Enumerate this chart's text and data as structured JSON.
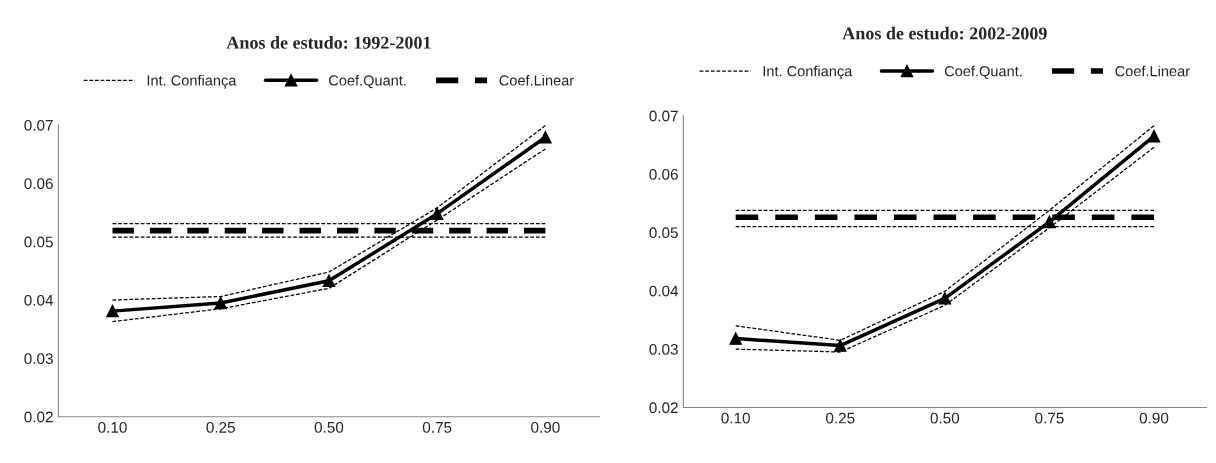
{
  "chart_data": [
    {
      "type": "line",
      "title": "Anos de estudo: 1992-2001",
      "categories": [
        "0.10",
        "0.25",
        "0.50",
        "0.75",
        "0.90"
      ],
      "ylim": [
        0.02,
        0.07
      ],
      "yticks": [
        0.02,
        0.03,
        0.04,
        0.05,
        0.06,
        0.07
      ],
      "grid": false,
      "legend": "top",
      "series": [
        {
          "name": "Int. Confiança",
          "color": "#000000",
          "line_style": "dotted",
          "marker": "none",
          "values": [
            0.04,
            0.0406,
            0.0448,
            0.0558,
            0.0699
          ]
        },
        {
          "color": "#000000",
          "line_style": "dotted",
          "marker": "none",
          "values": [
            0.0363,
            0.0385,
            0.042,
            0.0537,
            0.0659
          ]
        },
        {
          "name": "Coef.Quant.",
          "color": "#000000",
          "line_style": "solid",
          "marker": "triangle",
          "values": [
            0.0381,
            0.0395,
            0.0433,
            0.0548,
            0.0679
          ]
        },
        {
          "name": "Coef.Linear",
          "color": "#000000",
          "line_style": "dashed",
          "marker": "none",
          "values": [
            0.0519,
            0.0519,
            0.0519,
            0.0519,
            0.0519
          ]
        },
        {
          "color": "#000000",
          "line_style": "dotted",
          "marker": "none",
          "values": [
            0.0531,
            0.0531,
            0.0531,
            0.0531,
            0.0531
          ]
        },
        {
          "color": "#000000",
          "line_style": "dotted",
          "marker": "none",
          "values": [
            0.0508,
            0.0508,
            0.0508,
            0.0508,
            0.0508
          ]
        }
      ]
    },
    {
      "type": "line",
      "title": "Anos de estudo: 2002-2009",
      "categories": [
        "0.10",
        "0.25",
        "0.50",
        "0.75",
        "0.90"
      ],
      "ylim": [
        0.02,
        0.07
      ],
      "yticks": [
        0.02,
        0.03,
        0.04,
        0.05,
        0.06,
        0.07
      ],
      "grid": false,
      "legend": "top",
      "series": [
        {
          "name": "Int. Confiança",
          "color": "#000000",
          "line_style": "dotted",
          "marker": "none",
          "values": [
            0.034,
            0.0315,
            0.0399,
            0.0538,
            0.0683
          ]
        },
        {
          "color": "#000000",
          "line_style": "dotted",
          "marker": "none",
          "values": [
            0.03,
            0.0295,
            0.0375,
            0.0508,
            0.0646
          ]
        },
        {
          "name": "Coef.Quant.",
          "color": "#000000",
          "line_style": "solid",
          "marker": "triangle",
          "values": [
            0.0318,
            0.0306,
            0.0387,
            0.0518,
            0.0665
          ]
        },
        {
          "name": "Coef.Linear",
          "color": "#000000",
          "line_style": "dashed",
          "marker": "none",
          "values": [
            0.0526,
            0.0526,
            0.0526,
            0.0526,
            0.0526
          ]
        },
        {
          "color": "#000000",
          "line_style": "dotted",
          "marker": "none",
          "values": [
            0.0538,
            0.0538,
            0.0538,
            0.0538,
            0.0538
          ]
        },
        {
          "color": "#000000",
          "line_style": "dotted",
          "marker": "none",
          "values": [
            0.051,
            0.051,
            0.051,
            0.051,
            0.051
          ]
        }
      ]
    }
  ]
}
